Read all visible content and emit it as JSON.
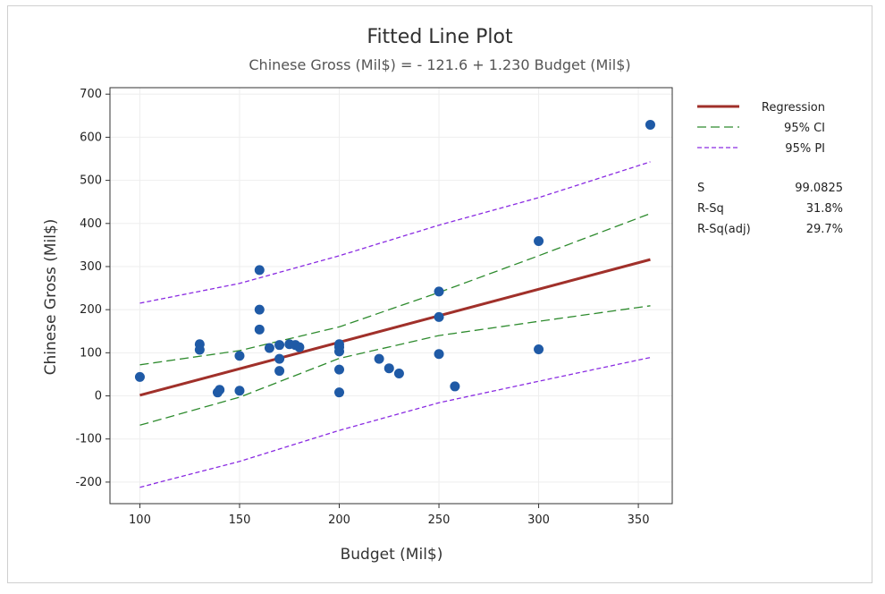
{
  "chart_data": {
    "type": "scatter",
    "title": "Fitted Line Plot",
    "subtitle": "Chinese Gross (Mil$) = - 121.6 + 1.230 Budget (Mil$)",
    "xlabel": "Budget (Mil$)",
    "ylabel": "Chinese Gross (Mil$)",
    "xlim": [
      85,
      367
    ],
    "ylim": [
      -250,
      715
    ],
    "xticks": [
      100,
      150,
      200,
      250,
      300,
      350
    ],
    "yticks": [
      -200,
      -100,
      0,
      100,
      200,
      300,
      400,
      500,
      600,
      700
    ],
    "grid": true,
    "legend_position": "right",
    "points": [
      {
        "x": 100,
        "y": 44
      },
      {
        "x": 130,
        "y": 120
      },
      {
        "x": 130,
        "y": 107
      },
      {
        "x": 139,
        "y": 8
      },
      {
        "x": 140,
        "y": 14
      },
      {
        "x": 150,
        "y": 93
      },
      {
        "x": 150,
        "y": 12
      },
      {
        "x": 160,
        "y": 292
      },
      {
        "x": 160,
        "y": 200
      },
      {
        "x": 160,
        "y": 154
      },
      {
        "x": 165,
        "y": 111
      },
      {
        "x": 170,
        "y": 118
      },
      {
        "x": 170,
        "y": 86
      },
      {
        "x": 170,
        "y": 58
      },
      {
        "x": 175,
        "y": 120
      },
      {
        "x": 178,
        "y": 118
      },
      {
        "x": 180,
        "y": 113
      },
      {
        "x": 200,
        "y": 120
      },
      {
        "x": 200,
        "y": 113
      },
      {
        "x": 200,
        "y": 103
      },
      {
        "x": 200,
        "y": 61
      },
      {
        "x": 200,
        "y": 8
      },
      {
        "x": 220,
        "y": 86
      },
      {
        "x": 225,
        "y": 64
      },
      {
        "x": 230,
        "y": 52
      },
      {
        "x": 250,
        "y": 242
      },
      {
        "x": 250,
        "y": 183
      },
      {
        "x": 250,
        "y": 97
      },
      {
        "x": 258,
        "y": 22
      },
      {
        "x": 300,
        "y": 359
      },
      {
        "x": 300,
        "y": 108
      },
      {
        "x": 356,
        "y": 629
      }
    ],
    "regression": {
      "intercept": -121.6,
      "slope": 1.23,
      "x_range": [
        100,
        356
      ]
    },
    "ci_upper": [
      [
        100,
        72
      ],
      [
        150,
        105
      ],
      [
        200,
        160
      ],
      [
        250,
        240
      ],
      [
        300,
        325
      ],
      [
        356,
        423
      ]
    ],
    "ci_lower": [
      [
        100,
        -68
      ],
      [
        150,
        -3
      ],
      [
        200,
        87
      ],
      [
        250,
        140
      ],
      [
        300,
        173
      ],
      [
        356,
        209
      ]
    ],
    "pi_upper": [
      [
        100,
        215
      ],
      [
        150,
        261
      ],
      [
        200,
        325
      ],
      [
        250,
        396
      ],
      [
        300,
        460
      ],
      [
        356,
        543
      ]
    ],
    "pi_lower": [
      [
        100,
        -212
      ],
      [
        150,
        -152
      ],
      [
        200,
        -80
      ],
      [
        250,
        -16
      ],
      [
        300,
        34
      ],
      [
        356,
        89
      ]
    ],
    "legend": [
      {
        "label": "Regression",
        "color": "#a0302a",
        "style": "solid"
      },
      {
        "label": "95% CI",
        "color": "#2e8b2e",
        "style": "long-dash"
      },
      {
        "label": "95% PI",
        "color": "#8a2be2",
        "style": "short-dash"
      }
    ],
    "stats": [
      {
        "name": "S",
        "value": "99.0825"
      },
      {
        "name": "R-Sq",
        "value": "31.8%"
      },
      {
        "name": "R-Sq(adj)",
        "value": "29.7%"
      }
    ],
    "colors": {
      "points": "#1f5aa6",
      "grid": "#eeeeee",
      "axis": "#333333"
    }
  }
}
